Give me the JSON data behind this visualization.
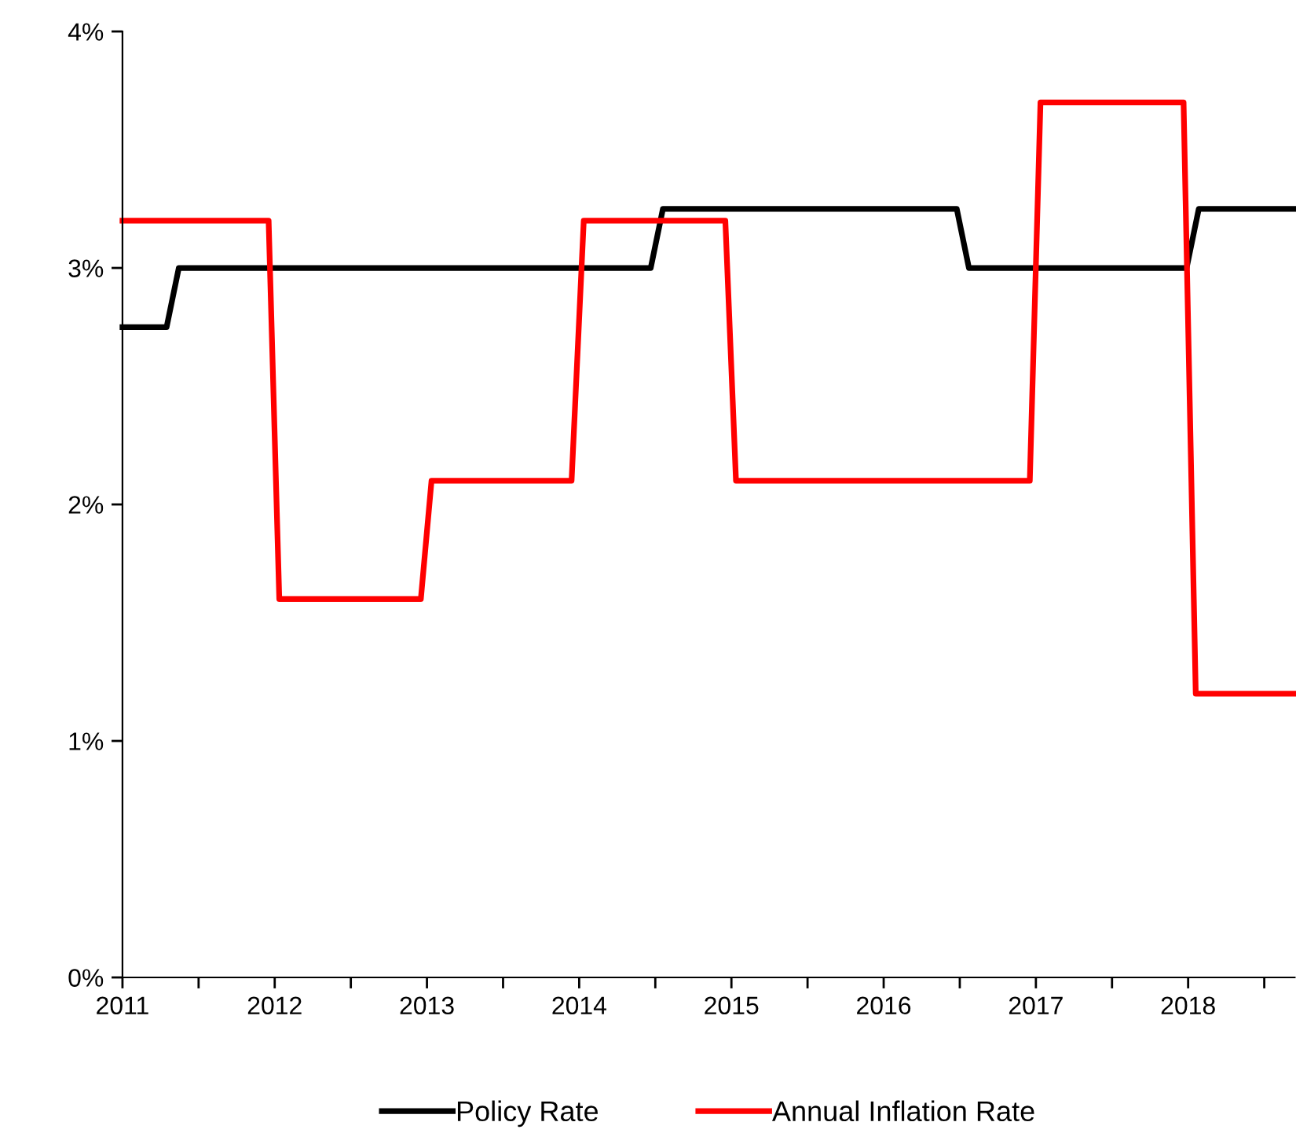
{
  "chart_data": {
    "type": "line",
    "xlim": [
      2011,
      2018.7
    ],
    "ylim": [
      0,
      4
    ],
    "xticks": [
      2011,
      {
        "value": 2011.5,
        "label": null
      },
      2012,
      {
        "value": 2012.5,
        "label": null
      },
      2013,
      {
        "value": 2013.5,
        "label": null
      },
      2014,
      {
        "value": 2014.5,
        "label": null
      },
      2015,
      {
        "value": 2015.5,
        "label": null
      },
      2016,
      {
        "value": 2016.5,
        "label": null
      },
      2017,
      {
        "value": 2017.5,
        "label": null
      },
      2018,
      {
        "value": 2018.5,
        "label": null
      }
    ],
    "yticks": [
      {
        "value": 0,
        "label": "0%"
      },
      {
        "value": 1,
        "label": "1%"
      },
      {
        "value": 2,
        "label": "2%"
      },
      {
        "value": 3,
        "label": "3%"
      },
      {
        "value": 4,
        "label": "4%"
      }
    ],
    "grid": false,
    "legend": "bottom",
    "marker": "none",
    "line_style": "solid",
    "series": [
      {
        "name": "Policy Rate",
        "color": "#000000",
        "x": [
          2011,
          2011.29,
          2011.37,
          2014.47,
          2014.55,
          2016.48,
          2016.56,
          2017.99,
          2018.07,
          2018.7
        ],
        "values": [
          2.75,
          2.75,
          3.0,
          3.0,
          3.25,
          3.25,
          3.0,
          3.0,
          3.25,
          3.25
        ]
      },
      {
        "name": "Annual Inflation Rate",
        "color": "#ff0000",
        "x": [
          2011,
          2011.96,
          2012.03,
          2012.96,
          2013.03,
          2013.95,
          2014.03,
          2014.96,
          2015.03,
          2016.96,
          2017.03,
          2017.97,
          2018.05,
          2018.7
        ],
        "values": [
          3.2,
          3.2,
          1.6,
          1.6,
          2.1,
          2.1,
          3.2,
          3.2,
          2.1,
          2.1,
          3.7,
          3.7,
          1.2,
          1.2
        ]
      }
    ]
  }
}
